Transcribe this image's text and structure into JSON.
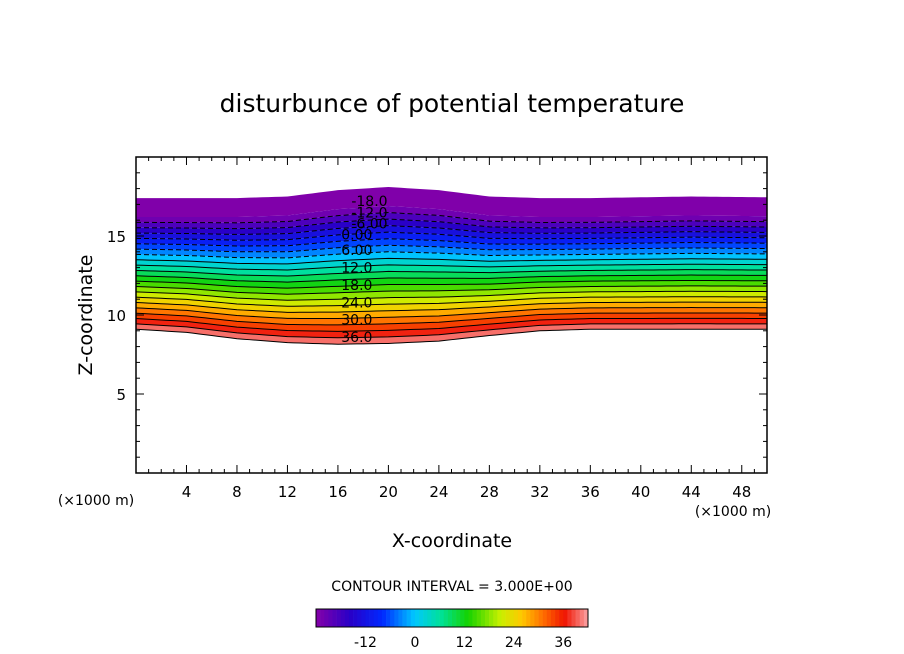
{
  "chart_data": {
    "type": "contour",
    "title": "disturbunce of potential temperature",
    "xlabel": "X-coordinate",
    "ylabel": "Z-coordinate",
    "x_unit_label": "(×1000 m)",
    "y_unit_label": "(×1000 m)",
    "xlim": [
      0,
      50
    ],
    "ylim": [
      0,
      20
    ],
    "x_ticks": [
      "4",
      "8",
      "12",
      "16",
      "20",
      "24",
      "28",
      "32",
      "36",
      "40",
      "44",
      "48"
    ],
    "y_ticks": [
      "5",
      "10",
      "15"
    ],
    "x_tick_values": [
      4,
      8,
      12,
      16,
      20,
      24,
      28,
      32,
      36,
      40,
      44,
      48
    ],
    "y_tick_values": [
      5,
      10,
      15
    ],
    "contour_interval_text": "CONTOUR INTERVAL = 3.000E+00",
    "contour_interval": 3,
    "levels": [
      -21,
      -18,
      -15,
      -12,
      -9,
      -6,
      -3,
      0,
      3,
      6,
      9,
      12,
      15,
      18,
      21,
      24,
      27,
      30,
      33,
      36,
      39
    ],
    "contour_labels": [
      {
        "text": "-18.0",
        "x": 18.5,
        "z": 17.2
      },
      {
        "text": "-12.0",
        "x": 18.5,
        "z": 16.5
      },
      {
        "text": "-6.00",
        "x": 18.5,
        "z": 15.8
      },
      {
        "text": "0.00",
        "x": 17.5,
        "z": 15.1
      },
      {
        "text": "6.00",
        "x": 17.5,
        "z": 14.1
      },
      {
        "text": "12.0",
        "x": 17.5,
        "z": 13.0
      },
      {
        "text": "18.0",
        "x": 17.5,
        "z": 11.9
      },
      {
        "text": "24.0",
        "x": 17.5,
        "z": 10.8
      },
      {
        "text": "30.0",
        "x": 17.5,
        "z": 9.7
      },
      {
        "text": "36.0",
        "x": 17.5,
        "z": 8.6
      }
    ],
    "colorbar_ticks": [
      "-12",
      "0",
      "12",
      "24",
      "36"
    ],
    "colorbar_tick_values": [
      -12,
      0,
      12,
      24,
      36
    ],
    "colorbar_range": [
      -24,
      42
    ],
    "field_top_z": [
      17.4,
      17.4,
      17.4,
      17.5,
      17.9,
      18.1,
      17.9,
      17.5,
      17.4,
      17.4,
      17.45,
      17.5,
      17.45
    ],
    "field_bottom_z": [
      9.1,
      8.9,
      8.5,
      8.25,
      8.15,
      8.2,
      8.35,
      8.7,
      9.0,
      9.1,
      9.1,
      9.1,
      9.1
    ],
    "field_x": [
      0,
      4,
      8,
      12,
      16,
      20,
      24,
      28,
      32,
      36,
      40,
      44,
      50
    ]
  }
}
